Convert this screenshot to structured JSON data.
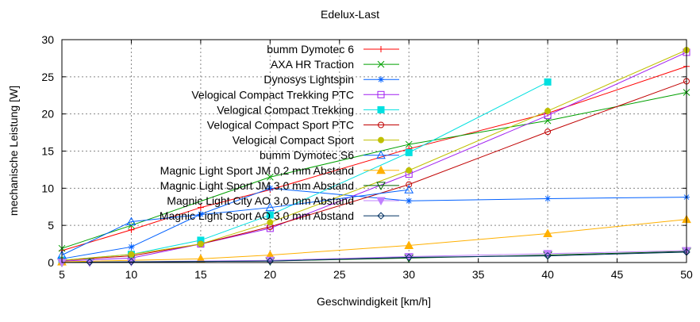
{
  "chart_data": {
    "type": "line",
    "title": "Edelux-Last",
    "xlabel": "Geschwindigkeit [km/h]",
    "ylabel": "mechanische Leistung [W]",
    "xlim": [
      5,
      50
    ],
    "ylim": [
      0,
      30
    ],
    "xticks": [
      5,
      10,
      15,
      20,
      25,
      30,
      35,
      40,
      45,
      50
    ],
    "yticks": [
      0,
      5,
      10,
      15,
      20,
      25,
      30
    ],
    "grid": true,
    "legend_position": "top-center",
    "series": [
      {
        "name": "bumm Dymotec 6",
        "color": "#ff0000",
        "marker": "plus",
        "x": [
          5,
          10,
          15,
          20,
          30,
          40,
          50
        ],
        "y": [
          1.6,
          4.4,
          7.4,
          9.8,
          15.3,
          20.1,
          26.4
        ]
      },
      {
        "name": "AXA HR Traction",
        "color": "#00a000",
        "marker": "cross",
        "x": [
          5,
          10,
          20,
          30,
          40,
          50
        ],
        "y": [
          1.9,
          5.0,
          11.5,
          15.9,
          19.1,
          22.9
        ]
      },
      {
        "name": "Dynosys Lightspin",
        "color": "#0060ff",
        "marker": "star",
        "x": [
          5,
          10,
          15,
          20,
          30,
          40,
          50
        ],
        "y": [
          0.5,
          2.1,
          6.5,
          10.0,
          8.3,
          8.6,
          8.8
        ]
      },
      {
        "name": "Velogical Compact Trekking PTC",
        "color": "#a020f0",
        "marker": "square",
        "x": [
          5,
          10,
          15,
          20,
          30,
          40,
          50
        ],
        "y": [
          0.2,
          0.6,
          2.5,
          4.6,
          11.9,
          19.8,
          28.3
        ]
      },
      {
        "name": "Velogical Compact Trekking",
        "color": "#00e0e0",
        "marker": "filled-square",
        "x": [
          5,
          10,
          15,
          20,
          30,
          40
        ],
        "y": [
          0.3,
          1.1,
          3.0,
          6.4,
          14.8,
          24.3
        ]
      },
      {
        "name": "Velogical Compact Sport PTC",
        "color": "#c00000",
        "marker": "circle",
        "x": [
          5,
          10,
          15,
          20,
          30,
          40,
          50
        ],
        "y": [
          0.3,
          0.9,
          2.5,
          4.8,
          10.5,
          17.6,
          24.4
        ]
      },
      {
        "name": "Velogical Compact Sport",
        "color": "#c0c000",
        "marker": "filled-circle",
        "x": [
          5,
          10,
          15,
          20,
          30,
          40,
          50
        ],
        "y": [
          0.3,
          1.1,
          2.5,
          5.4,
          12.4,
          20.4,
          28.6
        ]
      },
      {
        "name": "bumm Dymotec S6",
        "color": "#0060ff",
        "marker": "triangle",
        "x": [
          5,
          10,
          20,
          30
        ],
        "y": [
          1.0,
          5.5,
          7.4,
          9.8
        ]
      },
      {
        "name": "Magnic Light Sport JM 0,2 mm Abstand",
        "color": "#ffb000",
        "marker": "filled-triangle",
        "x": [
          5,
          15,
          20,
          30,
          40,
          50
        ],
        "y": [
          0.1,
          0.5,
          1.0,
          2.3,
          3.9,
          5.8
        ]
      },
      {
        "name": "Magnic Light Sport JM 3,0 mm Abstand",
        "color": "#006000",
        "marker": "triangle-down",
        "x": [
          5,
          7,
          20,
          30,
          40,
          50
        ],
        "y": [
          0.0,
          0.05,
          0.2,
          0.6,
          1.0,
          1.5
        ]
      },
      {
        "name": "Magnic Light City AO 3,0 mm Abstand",
        "color": "#c080ff",
        "marker": "filled-triangle-down",
        "x": [
          5,
          7,
          10,
          20,
          30,
          40,
          50
        ],
        "y": [
          0.0,
          0.0,
          0.1,
          0.3,
          0.8,
          1.2,
          1.6
        ]
      },
      {
        "name": "Magnic Light Sport AO 3,0 mm Abstand",
        "color": "#003060",
        "marker": "diamond",
        "x": [
          7,
          10,
          20,
          30,
          40,
          50
        ],
        "y": [
          0.05,
          0.1,
          0.2,
          0.7,
          0.9,
          1.4
        ]
      }
    ]
  }
}
